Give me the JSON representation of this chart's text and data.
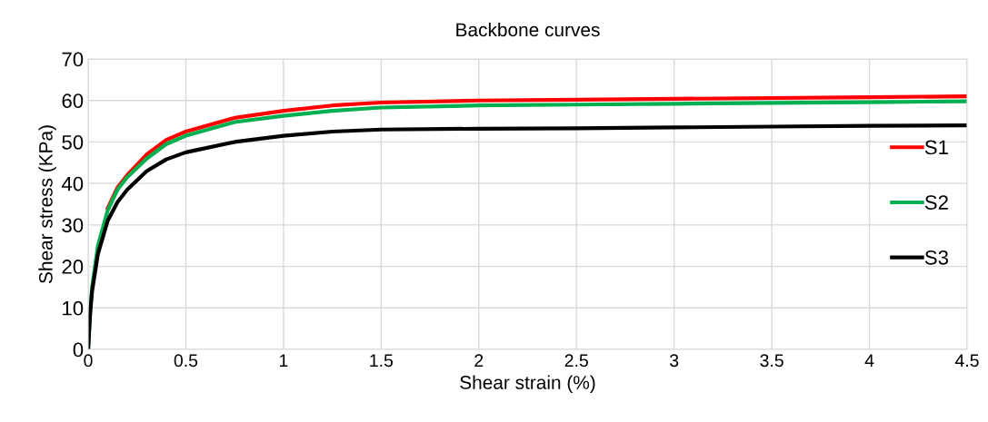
{
  "chart_data": {
    "type": "line",
    "title": "Backbone curves",
    "xlabel": "Shear strain (%)",
    "ylabel": "Shear stress (KPa)",
    "x": [
      0,
      0.01,
      0.02,
      0.05,
      0.1,
      0.15,
      0.2,
      0.3,
      0.4,
      0.5,
      0.75,
      1,
      1.25,
      1.5,
      2,
      2.5,
      3,
      3.5,
      4,
      4.5
    ],
    "series": [
      {
        "name": "S1",
        "color": "#ff0000",
        "values": [
          null,
          null,
          null,
          null,
          34,
          39,
          42,
          47,
          50.5,
          52.5,
          55.8,
          57.5,
          58.8,
          59.5,
          60,
          60.2,
          60.4,
          60.6,
          60.8,
          61
        ]
      },
      {
        "name": "S2",
        "color": "#00b050",
        "values": [
          0,
          9,
          15,
          25,
          33.5,
          38.5,
          41.5,
          46,
          49.5,
          51.5,
          54.8,
          56.3,
          57.5,
          58.3,
          58.8,
          59,
          59.2,
          59.4,
          59.6,
          59.8
        ]
      },
      {
        "name": "S3",
        "color": "#000000",
        "values": [
          0,
          8.5,
          14,
          23,
          31,
          35.5,
          38.5,
          43,
          45.8,
          47.5,
          50,
          51.5,
          52.5,
          53,
          53.2,
          53.3,
          53.5,
          53.7,
          53.9,
          54
        ]
      }
    ],
    "xlim": [
      0,
      4.5
    ],
    "ylim": [
      0,
      70
    ],
    "xticks": [
      0,
      0.5,
      1,
      1.5,
      2,
      2.5,
      3,
      3.5,
      4,
      4.5
    ],
    "yticks": [
      0,
      10,
      20,
      30,
      40,
      50,
      60,
      70
    ],
    "grid": true,
    "legend": "right",
    "marker": "none",
    "line_style": "solid"
  }
}
